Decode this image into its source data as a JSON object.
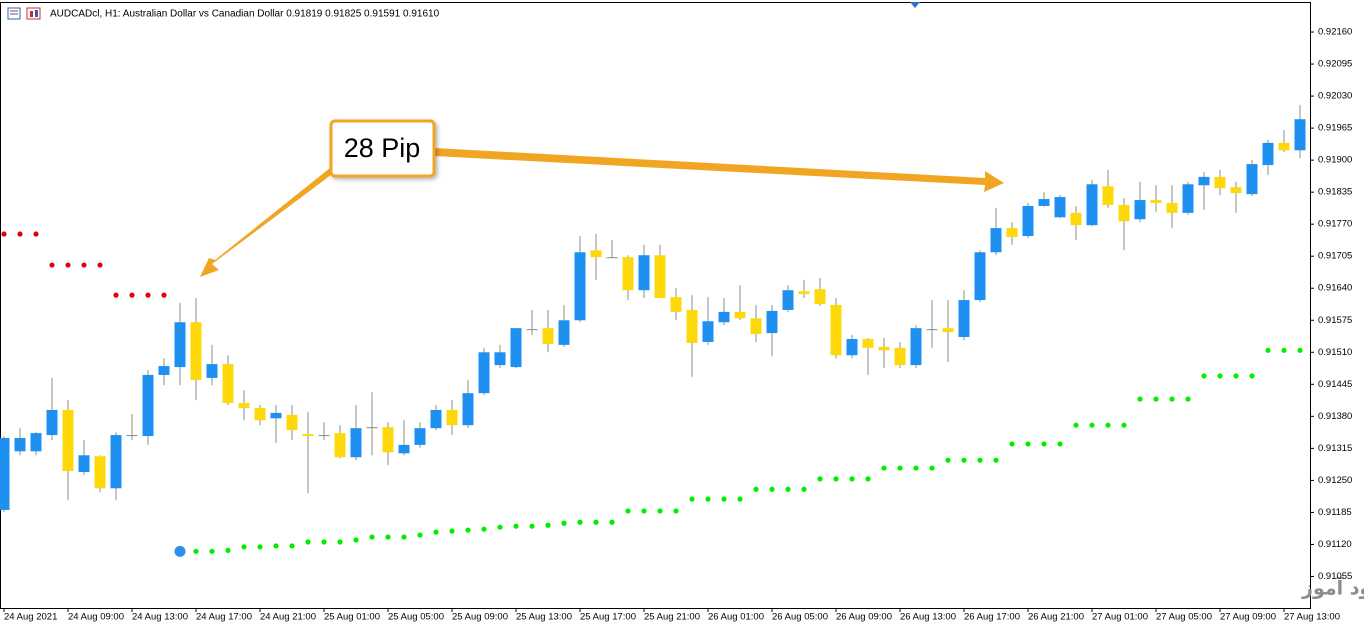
{
  "header": {
    "symbol": "AUDCADcl, H1:  Australian Dollar vs Canadian Dollar  0.91819 0.91825 0.91591 0.91610"
  },
  "chart_data": {
    "type": "candlestick",
    "categories": [
      "24 Aug 2021",
      null,
      null,
      null,
      "24 Aug 09:00",
      null,
      null,
      null,
      "24 Aug 13:00",
      null,
      null,
      null,
      "24 Aug 17:00",
      null,
      null,
      null,
      "24 Aug 21:00",
      null,
      null,
      null,
      "25 Aug 01:00",
      null,
      null,
      null,
      "25 Aug 05:00",
      null,
      null,
      null,
      "25 Aug 09:00",
      null,
      null,
      null,
      "25 Aug 13:00",
      null,
      null,
      null,
      "25 Aug 17:00",
      null,
      null,
      null,
      "25 Aug 21:00",
      null,
      null,
      null,
      "26 Aug 01:00",
      null,
      null,
      null,
      "26 Aug 05:00",
      null,
      null,
      null,
      "26 Aug 09:00",
      null,
      null,
      null,
      "26 Aug 13:00",
      null,
      null,
      null,
      "26 Aug 17:00",
      null,
      null,
      null,
      "26 Aug 21:00",
      null,
      null,
      null,
      "27 Aug 01:00",
      null,
      null,
      null,
      "27 Aug 05:00",
      null,
      null,
      null,
      "27 Aug 09:00",
      null,
      null,
      null,
      "27 Aug 13:00",
      null
    ],
    "open": [
      0.9119,
      0.91309,
      0.91309,
      0.91342,
      0.91393,
      0.91267,
      0.91299,
      0.91234,
      0.91342,
      0.9134,
      0.91464,
      0.9148,
      0.91571,
      0.91458,
      0.91486,
      0.91407,
      0.91397,
      0.91376,
      0.91383,
      0.91344,
      0.91342,
      0.91346,
      0.91297,
      0.91358,
      0.91358,
      0.91305,
      0.91322,
      0.91356,
      0.91393,
      0.91362,
      0.91427,
      0.91484,
      0.9148,
      0.91557,
      0.91559,
      0.91525,
      0.91575,
      0.91717,
      0.91703,
      0.91703,
      0.91636,
      0.91707,
      0.91622,
      0.91596,
      0.91531,
      0.91571,
      0.91592,
      0.91579,
      0.91549,
      0.91596,
      0.91634,
      0.91638,
      0.91606,
      0.91504,
      0.91537,
      0.91521,
      0.91519,
      0.91484,
      0.91557,
      0.91559,
      0.91541,
      0.91616,
      0.91713,
      0.91762,
      0.91746,
      0.91807,
      0.91784,
      0.91793,
      0.91768,
      0.91847,
      0.91809,
      0.9178,
      0.91819,
      0.91813,
      0.91793,
      0.91849,
      0.91866,
      0.91845,
      0.91831,
      0.9189,
      0.91935,
      0.9192
    ],
    "high": [
      0.9134,
      0.91356,
      0.91348,
      0.91458,
      0.91413,
      0.91332,
      0.91301,
      0.91348,
      0.91385,
      0.91474,
      0.91498,
      0.9161,
      0.9162,
      0.91525,
      0.91504,
      0.91433,
      0.91403,
      0.91403,
      0.91403,
      0.91389,
      0.91368,
      0.91362,
      0.91403,
      0.91429,
      0.91368,
      0.91372,
      0.91368,
      0.91403,
      0.91413,
      0.91454,
      0.91519,
      0.91525,
      0.91559,
      0.91596,
      0.91596,
      0.91606,
      0.91746,
      0.9175,
      0.91738,
      0.91707,
      0.91728,
      0.91728,
      0.9164,
      0.91626,
      0.91622,
      0.9162,
      0.91646,
      0.91606,
      0.91606,
      0.91646,
      0.91657,
      0.91661,
      0.9162,
      0.91545,
      0.91539,
      0.91539,
      0.91531,
      0.91565,
      0.91616,
      0.91616,
      0.91636,
      0.91717,
      0.91803,
      0.91774,
      0.91813,
      0.91835,
      0.91829,
      0.91807,
      0.9186,
      0.9188,
      0.91823,
      0.91856,
      0.91849,
      0.91849,
      0.91856,
      0.91876,
      0.9188,
      0.91856,
      0.919,
      0.91941,
      0.91961,
      0.92012
    ],
    "low": [
      0.91186,
      0.91301,
      0.91301,
      0.91332,
      0.9121,
      0.91261,
      0.91226,
      0.9121,
      0.91332,
      0.91322,
      0.91443,
      0.91443,
      0.91413,
      0.91443,
      0.91403,
      0.91372,
      0.91362,
      0.91326,
      0.91332,
      0.91224,
      0.91332,
      0.91295,
      0.91291,
      0.91301,
      0.91281,
      0.91301,
      0.91316,
      0.91352,
      0.91342,
      0.91356,
      0.91423,
      0.91478,
      0.91478,
      0.91545,
      0.9151,
      0.91521,
      0.91571,
      0.91657,
      0.91701,
      0.91616,
      0.9162,
      0.9162,
      0.91575,
      0.9146,
      0.91525,
      0.91565,
      0.91575,
      0.91531,
      0.91502,
      0.91592,
      0.9162,
      0.91604,
      0.91498,
      0.91498,
      0.91464,
      0.91478,
      0.91478,
      0.91478,
      0.91519,
      0.9149,
      0.91535,
      0.91612,
      0.91707,
      0.91728,
      0.91742,
      0.91805,
      0.91782,
      0.91738,
      0.91766,
      0.91803,
      0.91717,
      0.91774,
      0.91795,
      0.91762,
      0.91789,
      0.91799,
      0.91829,
      0.91793,
      0.91827,
      0.9187,
      0.91916,
      0.91904
    ],
    "close": [
      0.91336,
      0.91336,
      0.91346,
      0.91393,
      0.91269,
      0.91301,
      0.91234,
      0.91342,
      0.91342,
      0.91464,
      0.91482,
      0.91571,
      0.91454,
      0.91486,
      0.91407,
      0.91397,
      0.91372,
      0.91387,
      0.91352,
      0.9134,
      0.91342,
      0.91297,
      0.91356,
      0.91358,
      0.91307,
      0.91322,
      0.91356,
      0.91393,
      0.91362,
      0.91427,
      0.9151,
      0.9151,
      0.91559,
      0.91557,
      0.91527,
      0.91575,
      0.91713,
      0.91703,
      0.91703,
      0.91636,
      0.91707,
      0.9162,
      0.91592,
      0.91529,
      0.91573,
      0.91592,
      0.91579,
      0.91547,
      0.91594,
      0.91636,
      0.91628,
      0.91608,
      0.91504,
      0.91537,
      0.91519,
      0.91514,
      0.91484,
      0.91559,
      0.91557,
      0.91551,
      0.91616,
      0.91713,
      0.91762,
      0.91744,
      0.91807,
      0.91821,
      0.91825,
      0.91768,
      0.91851,
      0.91809,
      0.91776,
      0.91819,
      0.91813,
      0.91793,
      0.91851,
      0.91866,
      0.91843,
      0.91833,
      0.91892,
      0.91935,
      0.9192,
      0.91983
    ],
    "up_color": "#1e90f0",
    "down_color": "#ffd80a",
    "flat_color": "#8c8c8c",
    "ylim": [
      0.90991,
      0.92225
    ],
    "yticks": [
      {
        "value": 0.9216,
        "label": "0.92160"
      },
      0.92095,
      {
        "value": 0.9203,
        "label": "0.92030"
      },
      0.91965,
      {
        "value": 0.919,
        "label": "0.91900"
      },
      0.91835,
      {
        "value": 0.9177,
        "label": "0.91770"
      },
      0.91705,
      {
        "value": 0.9164,
        "label": "0.91640"
      },
      0.91575,
      {
        "value": 0.9151,
        "label": "0.91510"
      },
      0.91445,
      {
        "value": 0.9138,
        "label": "0.91380"
      },
      0.91315,
      {
        "value": 0.9125,
        "label": "0.91250"
      },
      0.91185,
      {
        "value": 0.9112,
        "label": "0.91120"
      },
      0.91055
    ],
    "indicators": [
      {
        "color": "#e60000",
        "values": [
          0.9175,
          0.9175,
          0.9175,
          0.91687,
          0.91687,
          0.91687,
          0.91687,
          0.91626,
          0.91626,
          0.91626,
          0.91626,
          null,
          null,
          null,
          null,
          null,
          null,
          null,
          null,
          null,
          null,
          null,
          null,
          null,
          null,
          null,
          null,
          null,
          null,
          null,
          null,
          null,
          null,
          null,
          null,
          null,
          null,
          null,
          null,
          null,
          null,
          null,
          null,
          null,
          null,
          null,
          null,
          null,
          null,
          null,
          null,
          null,
          null,
          null,
          null,
          null,
          null,
          null,
          null,
          null,
          null,
          null,
          null,
          null,
          null,
          null,
          null,
          null,
          null,
          null,
          null,
          null,
          null,
          null,
          null,
          null,
          null,
          null,
          null,
          null,
          null,
          null
        ]
      },
      {
        "color": "#00ee00",
        "values": [
          null,
          null,
          null,
          null,
          null,
          null,
          null,
          null,
          null,
          null,
          null,
          null,
          0.91106,
          0.91106,
          0.91108,
          0.91115,
          0.91115,
          0.91117,
          0.91117,
          0.91125,
          0.91125,
          0.91125,
          0.91129,
          0.91135,
          0.91135,
          0.91135,
          0.91139,
          0.91145,
          0.91147,
          0.91149,
          0.91151,
          0.91155,
          0.91157,
          0.91157,
          0.91159,
          0.91163,
          0.91165,
          0.91165,
          0.91165,
          0.91188,
          0.91188,
          0.91188,
          0.91188,
          0.91212,
          0.91212,
          0.91212,
          0.91212,
          0.91232,
          0.91232,
          0.91232,
          0.91232,
          0.91253,
          0.91253,
          0.91253,
          0.91253,
          0.91275,
          0.91275,
          0.91275,
          0.91275,
          0.91291,
          0.91291,
          0.91291,
          0.91291,
          0.91324,
          0.91324,
          0.91324,
          0.91324,
          0.91362,
          0.91362,
          0.91362,
          0.91362,
          0.91415,
          0.91415,
          0.91415,
          0.91415,
          0.91462,
          0.91462,
          0.91462,
          0.91462,
          0.91514,
          0.91514,
          0.91514
        ]
      },
      {
        "color": "#2b8fef",
        "values": [
          null,
          null,
          null,
          null,
          null,
          null,
          null,
          null,
          null,
          null,
          null,
          0.91106,
          null,
          null,
          null,
          null,
          null,
          null,
          null,
          null,
          null,
          null,
          null,
          null,
          null,
          null,
          null,
          null,
          null,
          null,
          null,
          null,
          null,
          null,
          null,
          null,
          null,
          null,
          null,
          null,
          null,
          null,
          null,
          null,
          null,
          null,
          null,
          null,
          null,
          null,
          null,
          null,
          null,
          null,
          null,
          null,
          null,
          null,
          null,
          null,
          null,
          null,
          null,
          null,
          null,
          null,
          null,
          null,
          null,
          null,
          null,
          null,
          null,
          null,
          null,
          null,
          null,
          null,
          null,
          null,
          null,
          null,
          null
        ]
      }
    ],
    "annotation": "28 Pip",
    "watermark": "انتشار در وبسایت  سود آموز"
  }
}
